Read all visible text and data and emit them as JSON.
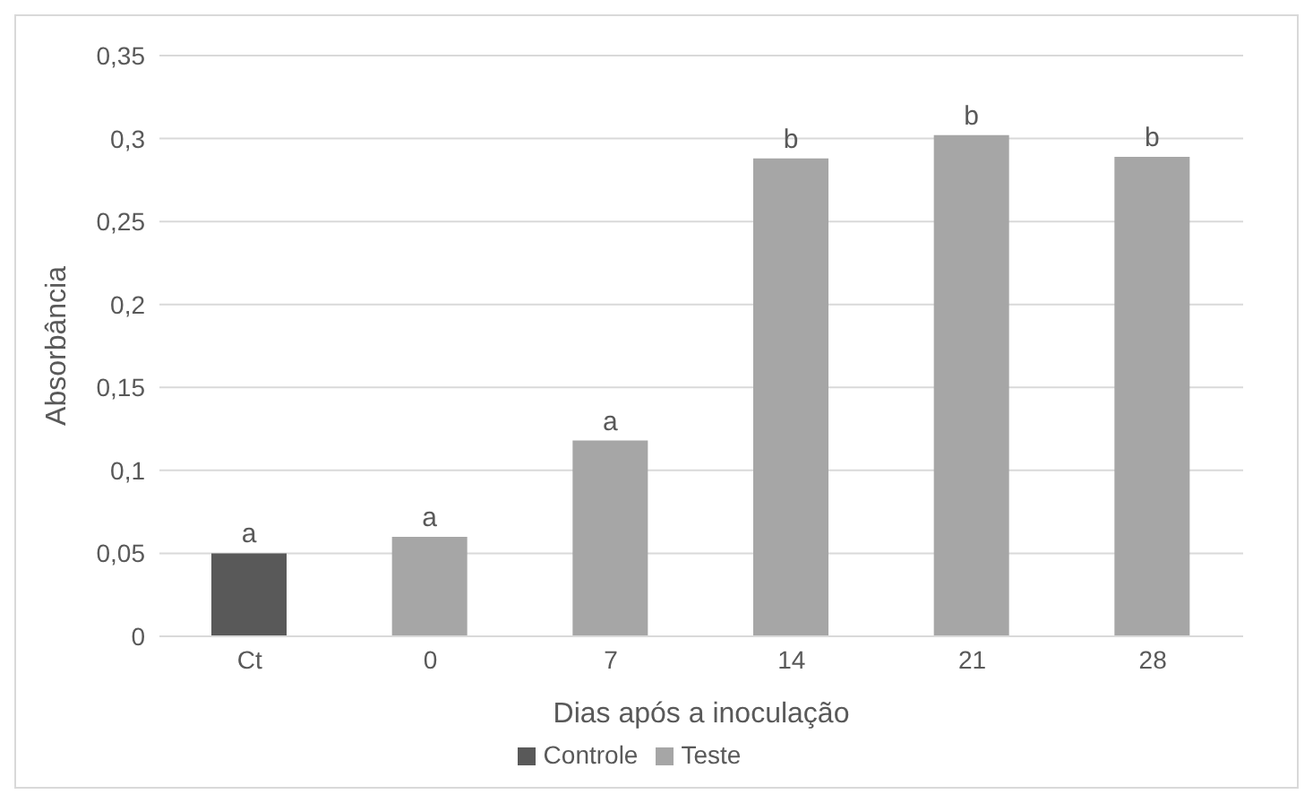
{
  "chart_data": {
    "type": "bar",
    "xlabel": "Dias após a inoculação",
    "ylabel": "Absorbância",
    "categories": [
      "Ct",
      "0",
      "7",
      "14",
      "21",
      "28"
    ],
    "series": [
      {
        "name": "Controle",
        "color": "#595959",
        "values": [
          0.05,
          null,
          null,
          null,
          null,
          null
        ],
        "value_labels": [
          "a",
          null,
          null,
          null,
          null,
          null
        ]
      },
      {
        "name": "Teste",
        "color": "#a6a6a6",
        "values": [
          null,
          0.06,
          0.118,
          0.288,
          0.302,
          0.289
        ],
        "value_labels": [
          null,
          "a",
          "a",
          "b",
          "b",
          "b"
        ]
      }
    ],
    "stacked": true,
    "ylim": [
      0,
      0.35
    ],
    "yticks": [
      {
        "value": 0,
        "label": "0"
      },
      {
        "value": 0.05,
        "label": "0,05"
      },
      {
        "value": 0.1,
        "label": "0,1"
      },
      {
        "value": 0.15,
        "label": "0,15"
      },
      {
        "value": 0.2,
        "label": "0,2"
      },
      {
        "value": 0.25,
        "label": "0,25"
      },
      {
        "value": 0.3,
        "label": "0,3"
      },
      {
        "value": 0.35,
        "label": "0,35"
      }
    ],
    "grid": "y",
    "legend": "bottom"
  }
}
